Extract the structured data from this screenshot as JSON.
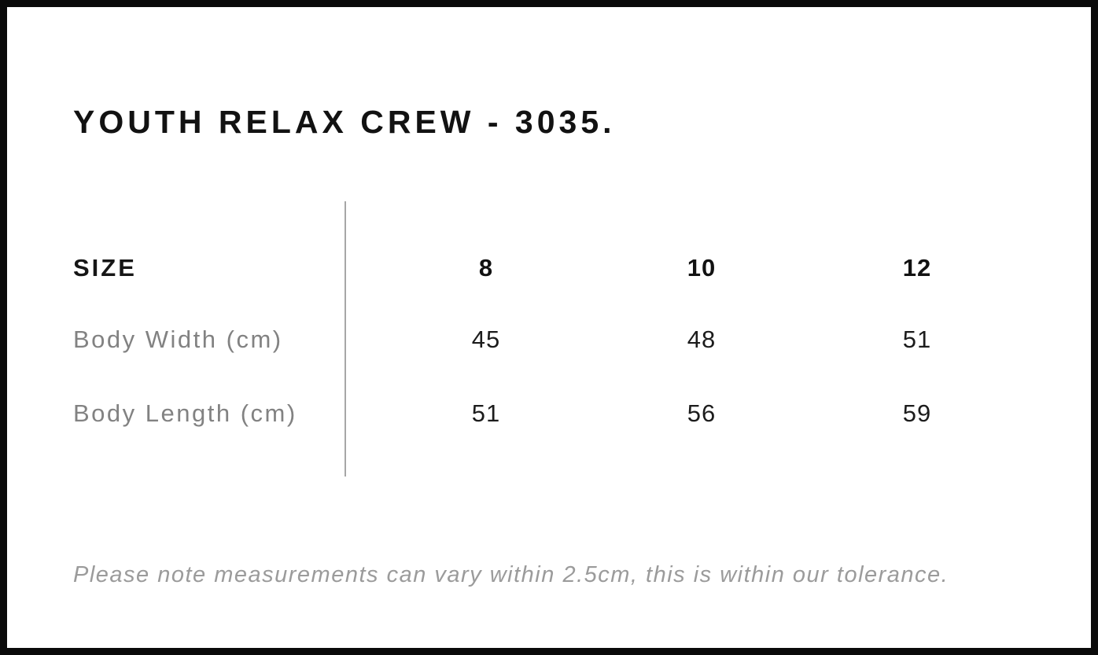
{
  "page_title": "YOUTH RELAX CREW - 3035.",
  "size_chart": {
    "header_label": "SIZE",
    "columns": [
      "8",
      "10",
      "12"
    ],
    "rows": [
      {
        "label": "Body Width (cm)",
        "values": [
          "45",
          "48",
          "51"
        ]
      },
      {
        "label": "Body Length (cm)",
        "values": [
          "51",
          "56",
          "59"
        ]
      }
    ]
  },
  "note": "Please note measurements can vary within 2.5cm, this is within our tolerance.",
  "colors": {
    "frame": "#0a0a0a",
    "heading_text": "#121212",
    "value_text": "#1c1c1c",
    "row_label_text": "#828282",
    "note_text": "#9b9b9b",
    "divider": "#a6a6a6",
    "background": "#ffffff"
  }
}
